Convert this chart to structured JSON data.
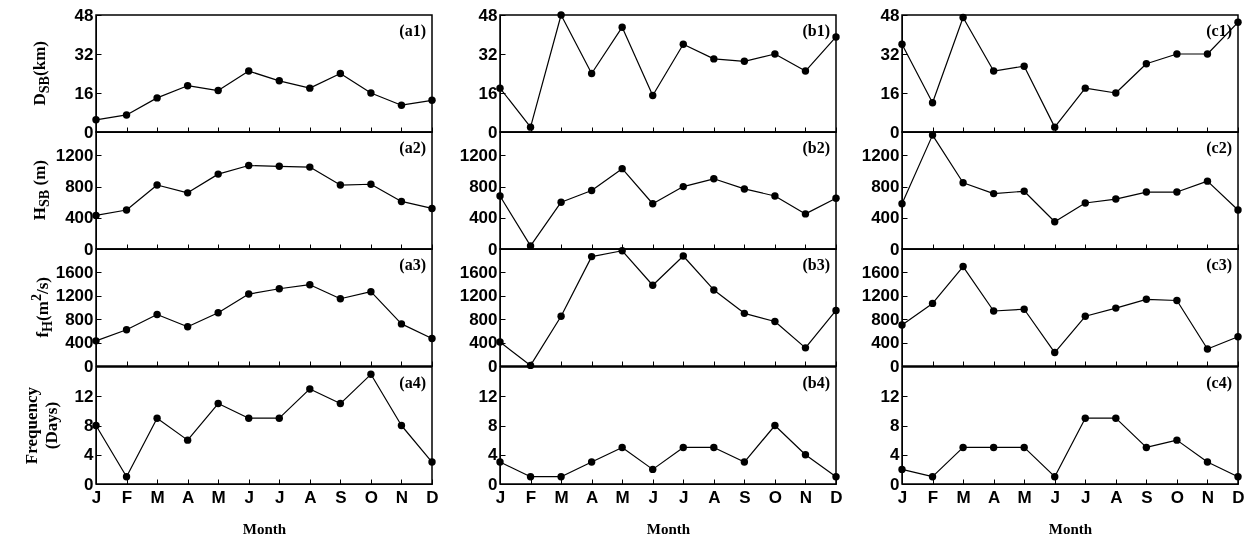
{
  "chart_data": [
    {
      "type": "line",
      "categories": [
        null,
        null,
        null,
        null,
        null,
        null,
        null,
        null,
        null,
        null,
        null,
        null
      ],
      "values": [
        5,
        7,
        14,
        19,
        17,
        25,
        21,
        18,
        24,
        16,
        11,
        13
      ],
      "color": "#000000",
      "marker": "circle",
      "ylim": [
        0,
        48
      ],
      "yticks": [
        0,
        16,
        32,
        48
      ],
      "ylabel": "D$_{SB}$(km)",
      "annotations": [
        "(a1)"
      ],
      "tick_labels": "y"
    },
    {
      "type": "line",
      "categories": [
        null,
        null,
        null,
        null,
        null,
        null,
        null,
        null,
        null,
        null,
        null,
        null
      ],
      "values": [
        18,
        2,
        48,
        24,
        43,
        15,
        36,
        30,
        29,
        32,
        25,
        39
      ],
      "color": "#000000",
      "marker": "circle",
      "ylim": [
        0,
        48
      ],
      "yticks": [
        0,
        16,
        32,
        48
      ],
      "annotations": [
        "(b1)"
      ],
      "tick_labels": "y"
    },
    {
      "type": "line",
      "categories": [
        null,
        null,
        null,
        null,
        null,
        null,
        null,
        null,
        null,
        null,
        null,
        null
      ],
      "values": [
        36,
        12,
        47,
        25,
        27,
        2,
        18,
        16,
        28,
        32,
        32,
        45
      ],
      "color": "#000000",
      "marker": "circle",
      "ylim": [
        0,
        48
      ],
      "yticks": [
        0,
        16,
        32,
        48
      ],
      "annotations": [
        "(c1)"
      ],
      "tick_labels": "y"
    },
    {
      "type": "line",
      "categories": [
        null,
        null,
        null,
        null,
        null,
        null,
        null,
        null,
        null,
        null,
        null,
        null
      ],
      "values": [
        430,
        500,
        820,
        720,
        960,
        1070,
        1060,
        1050,
        820,
        830,
        610,
        520
      ],
      "color": "#000000",
      "marker": "circle",
      "ylim": [
        0,
        1500
      ],
      "yticks": [
        0,
        400,
        800,
        1200
      ],
      "ylabel": "H$_{SB}$ (m)",
      "annotations": [
        "(a2)"
      ],
      "tick_labels": "y"
    },
    {
      "type": "line",
      "categories": [
        null,
        null,
        null,
        null,
        null,
        null,
        null,
        null,
        null,
        null,
        null,
        null
      ],
      "values": [
        680,
        40,
        600,
        750,
        1030,
        580,
        800,
        900,
        770,
        680,
        450,
        650
      ],
      "color": "#000000",
      "marker": "circle",
      "ylim": [
        0,
        1500
      ],
      "yticks": [
        0,
        400,
        800,
        1200
      ],
      "annotations": [
        "(b2)"
      ],
      "tick_labels": "y"
    },
    {
      "type": "line",
      "categories": [
        null,
        null,
        null,
        null,
        null,
        null,
        null,
        null,
        null,
        null,
        null,
        null
      ],
      "values": [
        580,
        1460,
        850,
        710,
        740,
        350,
        590,
        640,
        730,
        730,
        870,
        500
      ],
      "color": "#000000",
      "marker": "circle",
      "ylim": [
        0,
        1500
      ],
      "yticks": [
        0,
        400,
        800,
        1200
      ],
      "annotations": [
        "(c2)"
      ],
      "tick_labels": "y"
    },
    {
      "type": "line",
      "categories": [
        null,
        null,
        null,
        null,
        null,
        null,
        null,
        null,
        null,
        null,
        null,
        null
      ],
      "values": [
        430,
        620,
        880,
        670,
        910,
        1230,
        1320,
        1390,
        1150,
        1270,
        720,
        470
      ],
      "color": "#000000",
      "marker": "circle",
      "ylim": [
        0,
        2000
      ],
      "yticks": [
        0,
        400,
        800,
        1200,
        1600
      ],
      "ylabel": "f$_{H}$(m$^{2}$/s)",
      "annotations": [
        "(a3)"
      ],
      "tick_labels": "y"
    },
    {
      "type": "line",
      "categories": [
        null,
        null,
        null,
        null,
        null,
        null,
        null,
        null,
        null,
        null,
        null,
        null
      ],
      "values": [
        410,
        10,
        850,
        1870,
        1970,
        1380,
        1880,
        1300,
        900,
        760,
        310,
        950
      ],
      "color": "#000000",
      "marker": "circle",
      "ylim": [
        0,
        2000
      ],
      "yticks": [
        0,
        400,
        800,
        1200,
        1600
      ],
      "annotations": [
        "(b3)"
      ],
      "tick_labels": "y"
    },
    {
      "type": "line",
      "categories": [
        null,
        null,
        null,
        null,
        null,
        null,
        null,
        null,
        null,
        null,
        null,
        null
      ],
      "values": [
        700,
        1070,
        1700,
        940,
        970,
        230,
        850,
        990,
        1140,
        1120,
        290,
        500
      ],
      "color": "#000000",
      "marker": "circle",
      "ylim": [
        0,
        2000
      ],
      "yticks": [
        0,
        400,
        800,
        1200,
        1600
      ],
      "annotations": [
        "(c3)"
      ],
      "tick_labels": "y"
    },
    {
      "type": "line",
      "categories": [
        "J",
        "F",
        "M",
        "A",
        "M",
        "J",
        "J",
        "A",
        "S",
        "O",
        "N",
        "D"
      ],
      "values": [
        8,
        1,
        9,
        6,
        11,
        9,
        9,
        13,
        11,
        15,
        8,
        3
      ],
      "color": "#000000",
      "marker": "circle",
      "ylim": [
        0,
        16
      ],
      "yticks": [
        0,
        4,
        8,
        12
      ],
      "ylabel": "Frequency\n(Days)",
      "xlabel": "Month",
      "annotations": [
        "(a4)"
      ]
    },
    {
      "type": "line",
      "categories": [
        "J",
        "F",
        "M",
        "A",
        "M",
        "J",
        "J",
        "A",
        "S",
        "O",
        "N",
        "D"
      ],
      "values": [
        3,
        1,
        1,
        3,
        5,
        2,
        5,
        5,
        3,
        8,
        4,
        1
      ],
      "color": "#000000",
      "marker": "circle",
      "ylim": [
        0,
        16
      ],
      "yticks": [
        0,
        4,
        8,
        12
      ],
      "xlabel": "Month",
      "annotations": [
        "(b4)"
      ]
    },
    {
      "type": "line",
      "categories": [
        "J",
        "F",
        "M",
        "A",
        "M",
        "J",
        "J",
        "A",
        "S",
        "O",
        "N",
        "D"
      ],
      "values": [
        2,
        1,
        5,
        5,
        5,
        1,
        9,
        9,
        5,
        6,
        3,
        1
      ],
      "color": "#000000",
      "marker": "circle",
      "ylim": [
        0,
        16
      ],
      "yticks": [
        0,
        4,
        8,
        12
      ],
      "xlabel": "Month",
      "annotations": [
        "(c4)"
      ]
    }
  ]
}
